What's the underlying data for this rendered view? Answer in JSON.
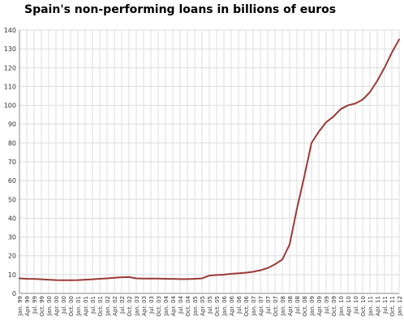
{
  "chart_data": {
    "type": "line",
    "title": "Spain's non-performing loans in billions of euros",
    "xlabel": "",
    "ylabel": "",
    "ylim": [
      0,
      140
    ],
    "yticks": [
      0,
      10,
      20,
      30,
      40,
      50,
      60,
      70,
      80,
      90,
      100,
      110,
      120,
      130,
      140
    ],
    "grid": true,
    "line_color": "#9b3a37",
    "x_tick_labels": [
      "Jan. 99",
      "Apr. 99",
      "Jul. 99",
      "Oct. 99",
      "Jan. 00",
      "Apr. 00",
      "Jul. 00",
      "Oct. 00",
      "Jan. 01",
      "Apr. 01",
      "Jul. 01",
      "Oct. 01",
      "Jan. 02",
      "Apr. 02",
      "Jul. 02",
      "Oct. 02",
      "Jan. 03",
      "Apr. 03",
      "Jul. 03",
      "Oct. 03",
      "Jan. 04",
      "Apr. 04",
      "Jul. 04",
      "Oct. 04",
      "Jan. 05",
      "Apr. 05",
      "Jul. 05",
      "Oct. 05",
      "Jan. 06",
      "Apr. 06",
      "Jul. 06",
      "Oct. 06",
      "Jan. 07",
      "Apr. 07",
      "Jul. 07",
      "Oct. 07",
      "Jan. 08",
      "Apr. 08",
      "Jul. 08",
      "Oct. 08",
      "Jan. 09",
      "Apr. 09",
      "Jul. 09",
      "Oct. 09",
      "Jan. 10",
      "Apr. 10",
      "Jul. 10",
      "Oct. 10",
      "Jan. 11",
      "Apr. 11",
      "Jul. 11",
      "Oct. 11",
      "Jan. 12"
    ],
    "series": [
      {
        "name": "",
        "x": [
          "Jan. 99",
          "Apr. 99",
          "Jul. 99",
          "Oct. 99",
          "Jan. 00",
          "Apr. 00",
          "Jul. 00",
          "Oct. 00",
          "Jan. 01",
          "Apr. 01",
          "Jul. 01",
          "Oct. 01",
          "Jan. 02",
          "Apr. 02",
          "Jul. 02",
          "Oct. 02",
          "Jan. 03",
          "Apr. 03",
          "Jul. 03",
          "Oct. 03",
          "Jan. 04",
          "Apr. 04",
          "Jul. 04",
          "Oct. 04",
          "Jan. 05",
          "Apr. 05",
          "Jul. 05",
          "Oct. 05",
          "Jan. 06",
          "Apr. 06",
          "Jul. 06",
          "Oct. 06",
          "Jan. 07",
          "Apr. 07",
          "Jul. 07",
          "Oct. 07",
          "Jan. 08",
          "Apr. 08",
          "Jul. 08",
          "Oct. 08",
          "Jan. 09",
          "Apr. 09",
          "Jul. 09",
          "Oct. 09",
          "Jan. 10",
          "Apr. 10",
          "Jul. 10",
          "Oct. 10",
          "Jan. 11",
          "Apr. 11",
          "Jul. 11",
          "Oct. 11",
          "Jan. 12"
        ],
        "values": [
          8.0,
          7.8,
          7.7,
          7.5,
          7.3,
          7.1,
          7.0,
          7.0,
          7.1,
          7.3,
          7.5,
          7.8,
          8.0,
          8.3,
          8.6,
          8.7,
          8.0,
          7.9,
          7.9,
          7.9,
          7.8,
          7.7,
          7.6,
          7.6,
          7.8,
          8.0,
          9.5,
          9.8,
          10.0,
          10.4,
          10.7,
          11.0,
          11.5,
          12.3,
          13.5,
          15.5,
          18.0,
          26.0,
          45.0,
          62.0,
          80.0,
          86.0,
          91.0,
          94.0,
          98.0,
          100.0,
          101.0,
          103.0,
          107.0,
          113.0,
          120.0,
          128.0,
          135.0
        ]
      }
    ]
  }
}
